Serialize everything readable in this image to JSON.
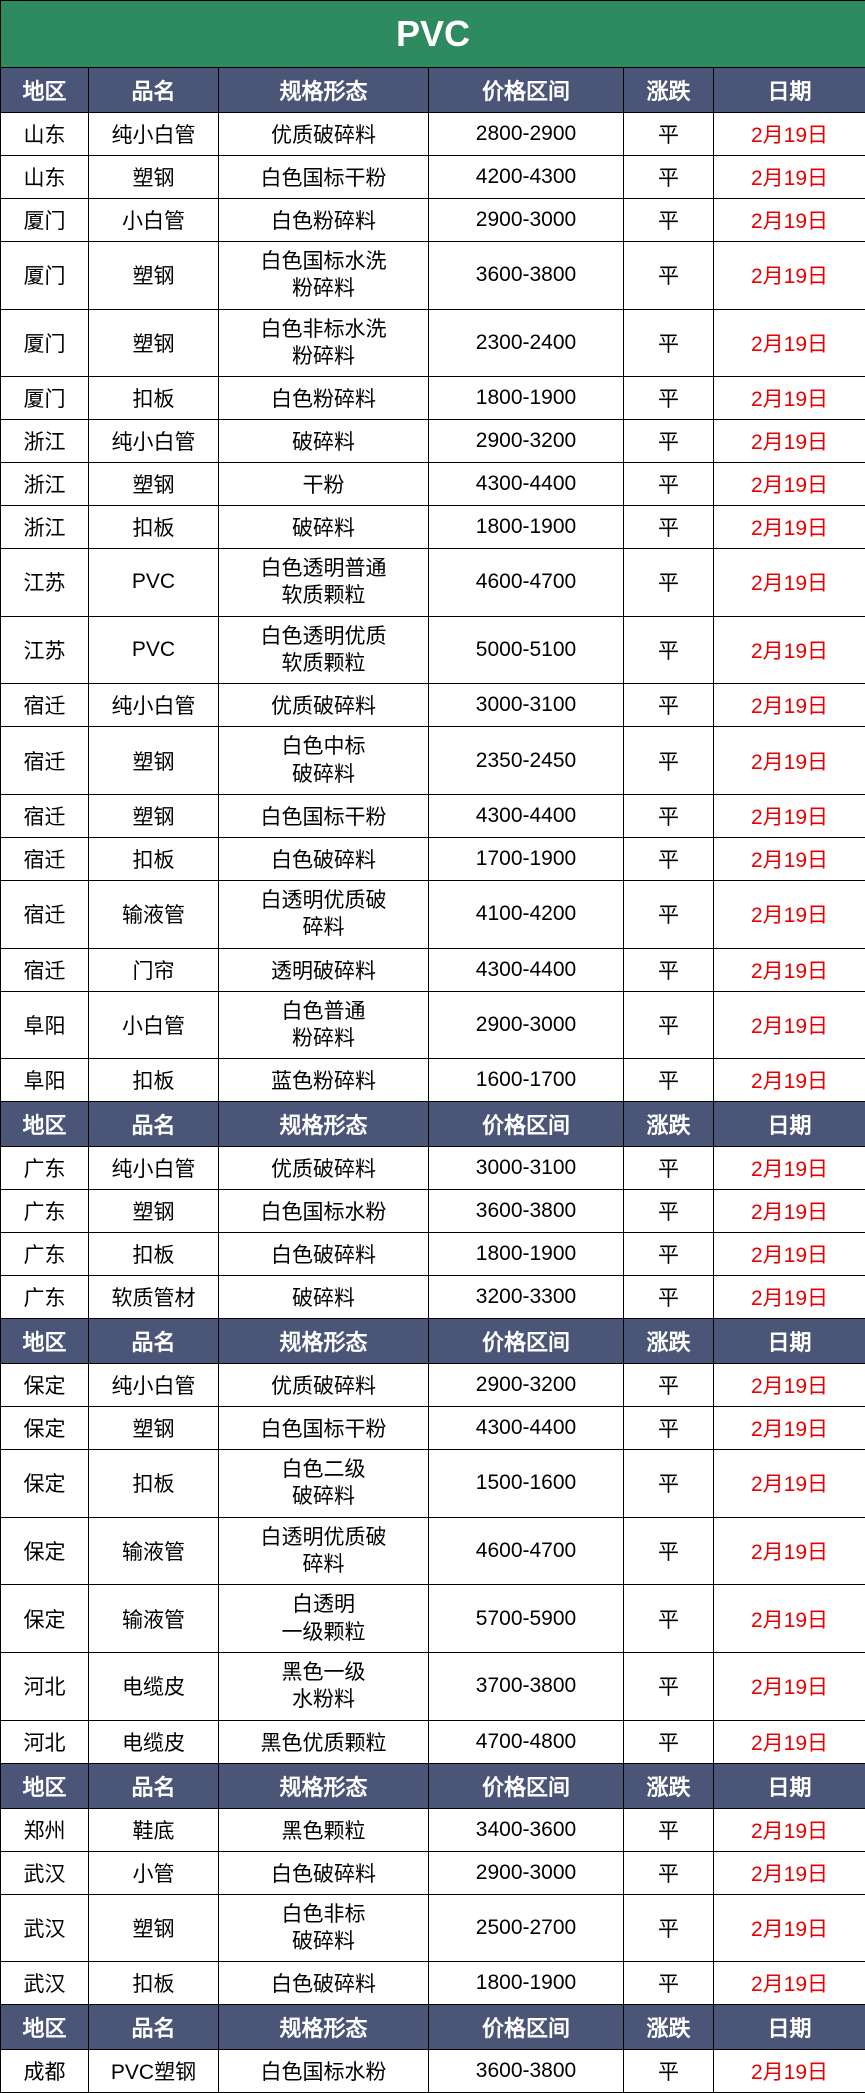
{
  "title": "PVC",
  "headers": {
    "region": "地区",
    "name": "品名",
    "spec": "规格形态",
    "price": "价格区间",
    "trend": "涨跌",
    "date": "日期"
  },
  "colors": {
    "title_bg": "#2d8b5f",
    "header_bg": "#4a5578",
    "header_text": "#ffffff",
    "cell_text": "#000000",
    "date_text": "#e60000",
    "border": "#000000",
    "cell_bg": "#ffffff"
  },
  "sections": [
    {
      "rows": [
        {
          "region": "山东",
          "name": "纯小白管",
          "spec": "优质破碎料",
          "price": "2800-2900",
          "trend": "平",
          "date": "2月19日"
        },
        {
          "region": "山东",
          "name": "塑钢",
          "spec": "白色国标干粉",
          "price": "4200-4300",
          "trend": "平",
          "date": "2月19日"
        },
        {
          "region": "厦门",
          "name": "小白管",
          "spec": "白色粉碎料",
          "price": "2900-3000",
          "trend": "平",
          "date": "2月19日"
        },
        {
          "region": "厦门",
          "name": "塑钢",
          "spec": "白色国标水洗\n粉碎料",
          "price": "3600-3800",
          "trend": "平",
          "date": "2月19日"
        },
        {
          "region": "厦门",
          "name": "塑钢",
          "spec": "白色非标水洗\n粉碎料",
          "price": "2300-2400",
          "trend": "平",
          "date": "2月19日"
        },
        {
          "region": "厦门",
          "name": "扣板",
          "spec": "白色粉碎料",
          "price": "1800-1900",
          "trend": "平",
          "date": "2月19日"
        },
        {
          "region": "浙江",
          "name": "纯小白管",
          "spec": "破碎料",
          "price": "2900-3200",
          "trend": "平",
          "date": "2月19日"
        },
        {
          "region": "浙江",
          "name": "塑钢",
          "spec": "干粉",
          "price": "4300-4400",
          "trend": "平",
          "date": "2月19日"
        },
        {
          "region": "浙江",
          "name": "扣板",
          "spec": "破碎料",
          "price": "1800-1900",
          "trend": "平",
          "date": "2月19日"
        },
        {
          "region": "江苏",
          "name": "PVC",
          "spec": "白色透明普通\n软质颗粒",
          "price": "4600-4700",
          "trend": "平",
          "date": "2月19日"
        },
        {
          "region": "江苏",
          "name": "PVC",
          "spec": "白色透明优质\n软质颗粒",
          "price": "5000-5100",
          "trend": "平",
          "date": "2月19日"
        },
        {
          "region": "宿迁",
          "name": "纯小白管",
          "spec": "优质破碎料",
          "price": "3000-3100",
          "trend": "平",
          "date": "2月19日"
        },
        {
          "region": "宿迁",
          "name": "塑钢",
          "spec": "白色中标\n破碎料",
          "price": "2350-2450",
          "trend": "平",
          "date": "2月19日"
        },
        {
          "region": "宿迁",
          "name": "塑钢",
          "spec": "白色国标干粉",
          "price": "4300-4400",
          "trend": "平",
          "date": "2月19日"
        },
        {
          "region": "宿迁",
          "name": "扣板",
          "spec": "白色破碎料",
          "price": "1700-1900",
          "trend": "平",
          "date": "2月19日"
        },
        {
          "region": "宿迁",
          "name": "输液管",
          "spec": "白透明优质破\n碎料",
          "price": "4100-4200",
          "trend": "平",
          "date": "2月19日"
        },
        {
          "region": "宿迁",
          "name": "门帘",
          "spec": "透明破碎料",
          "price": "4300-4400",
          "trend": "平",
          "date": "2月19日"
        },
        {
          "region": "阜阳",
          "name": "小白管",
          "spec": "白色普通\n粉碎料",
          "price": "2900-3000",
          "trend": "平",
          "date": "2月19日"
        },
        {
          "region": "阜阳",
          "name": "扣板",
          "spec": "蓝色粉碎料",
          "price": "1600-1700",
          "trend": "平",
          "date": "2月19日"
        }
      ]
    },
    {
      "rows": [
        {
          "region": "广东",
          "name": "纯小白管",
          "spec": "优质破碎料",
          "price": "3000-3100",
          "trend": "平",
          "date": "2月19日"
        },
        {
          "region": "广东",
          "name": "塑钢",
          "spec": "白色国标水粉",
          "price": "3600-3800",
          "trend": "平",
          "date": "2月19日"
        },
        {
          "region": "广东",
          "name": "扣板",
          "spec": "白色破碎料",
          "price": "1800-1900",
          "trend": "平",
          "date": "2月19日"
        },
        {
          "region": "广东",
          "name": "软质管材",
          "spec": "破碎料",
          "price": "3200-3300",
          "trend": "平",
          "date": "2月19日"
        }
      ]
    },
    {
      "rows": [
        {
          "region": "保定",
          "name": "纯小白管",
          "spec": "优质破碎料",
          "price": "2900-3200",
          "trend": "平",
          "date": "2月19日"
        },
        {
          "region": "保定",
          "name": "塑钢",
          "spec": "白色国标干粉",
          "price": "4300-4400",
          "trend": "平",
          "date": "2月19日"
        },
        {
          "region": "保定",
          "name": "扣板",
          "spec": "白色二级\n破碎料",
          "price": "1500-1600",
          "trend": "平",
          "date": "2月19日"
        },
        {
          "region": "保定",
          "name": "输液管",
          "spec": "白透明优质破\n碎料",
          "price": "4600-4700",
          "trend": "平",
          "date": "2月19日"
        },
        {
          "region": "保定",
          "name": "输液管",
          "spec": "白透明\n一级颗粒",
          "price": "5700-5900",
          "trend": "平",
          "date": "2月19日"
        },
        {
          "region": "河北",
          "name": "电缆皮",
          "spec": "黑色一级\n水粉料",
          "price": "3700-3800",
          "trend": "平",
          "date": "2月19日"
        },
        {
          "region": "河北",
          "name": "电缆皮",
          "spec": "黑色优质颗粒",
          "price": "4700-4800",
          "trend": "平",
          "date": "2月19日"
        }
      ]
    },
    {
      "rows": [
        {
          "region": "郑州",
          "name": "鞋底",
          "spec": "黑色颗粒",
          "price": "3400-3600",
          "trend": "平",
          "date": "2月19日"
        },
        {
          "region": "武汉",
          "name": "小管",
          "spec": "白色破碎料",
          "price": "2900-3000",
          "trend": "平",
          "date": "2月19日"
        },
        {
          "region": "武汉",
          "name": "塑钢",
          "spec": "白色非标\n破碎料",
          "price": "2500-2700",
          "trend": "平",
          "date": "2月19日"
        },
        {
          "region": "武汉",
          "name": "扣板",
          "spec": "白色破碎料",
          "price": "1800-1900",
          "trend": "平",
          "date": "2月19日"
        }
      ]
    },
    {
      "rows": [
        {
          "region": "成都",
          "name": "PVC塑钢",
          "spec": "白色国标水粉",
          "price": "3600-3800",
          "trend": "平",
          "date": "2月19日"
        }
      ]
    }
  ]
}
